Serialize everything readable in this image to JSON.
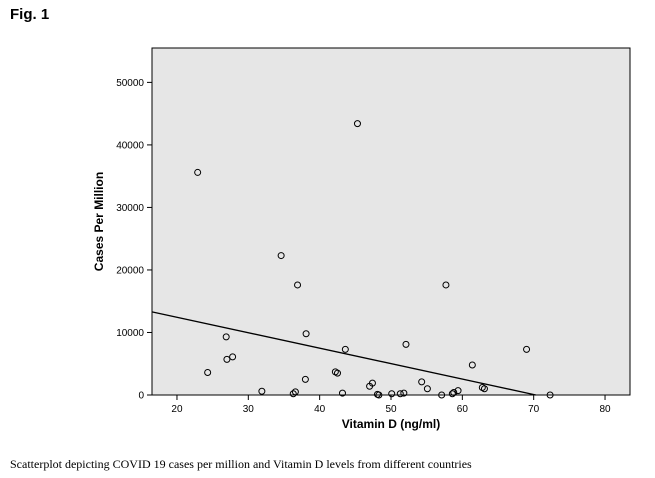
{
  "figure_label": "Fig. 1",
  "caption": "Scatterplot depicting COVID 19 cases per million and Vitamin D levels from different countries",
  "chart_data": {
    "type": "scatter",
    "xlabel": "Vitamin D (ng/ml)",
    "ylabel": "Cases Per Million",
    "xlim": [
      16.5,
      83.5
    ],
    "ylim": [
      0,
      55500
    ],
    "xticks": [
      20,
      30,
      40,
      50,
      60,
      70,
      80
    ],
    "yticks": [
      0,
      10000,
      20000,
      30000,
      40000,
      50000
    ],
    "grid": false,
    "background": "#e6e6e6",
    "points": [
      {
        "x": 22.9,
        "y": 35600
      },
      {
        "x": 24.3,
        "y": 3600
      },
      {
        "x": 26.9,
        "y": 9300
      },
      {
        "x": 27.0,
        "y": 5700
      },
      {
        "x": 27.8,
        "y": 6100
      },
      {
        "x": 31.9,
        "y": 600
      },
      {
        "x": 34.6,
        "y": 22300
      },
      {
        "x": 36.3,
        "y": 200
      },
      {
        "x": 36.6,
        "y": 500
      },
      {
        "x": 36.9,
        "y": 17600
      },
      {
        "x": 38.0,
        "y": 2500
      },
      {
        "x": 38.1,
        "y": 9800
      },
      {
        "x": 42.2,
        "y": 3700
      },
      {
        "x": 42.5,
        "y": 3500
      },
      {
        "x": 43.2,
        "y": 300
      },
      {
        "x": 43.6,
        "y": 7300
      },
      {
        "x": 45.3,
        "y": 43400
      },
      {
        "x": 47.0,
        "y": 1400
      },
      {
        "x": 47.4,
        "y": 1900
      },
      {
        "x": 48.1,
        "y": 100
      },
      {
        "x": 48.3,
        "y": 0
      },
      {
        "x": 50.1,
        "y": 200
      },
      {
        "x": 51.3,
        "y": 200
      },
      {
        "x": 51.8,
        "y": 300
      },
      {
        "x": 52.1,
        "y": 8100
      },
      {
        "x": 54.3,
        "y": 2100
      },
      {
        "x": 55.1,
        "y": 1000
      },
      {
        "x": 57.1,
        "y": 0
      },
      {
        "x": 57.7,
        "y": 17600
      },
      {
        "x": 58.6,
        "y": 200
      },
      {
        "x": 58.8,
        "y": 400
      },
      {
        "x": 59.4,
        "y": 700
      },
      {
        "x": 61.4,
        "y": 4800
      },
      {
        "x": 62.8,
        "y": 1200
      },
      {
        "x": 63.1,
        "y": 1000
      },
      {
        "x": 69.0,
        "y": 7300
      },
      {
        "x": 72.3,
        "y": 0
      }
    ],
    "fit_line": {
      "x": [
        16.5,
        70.3
      ],
      "y": [
        13300,
        0
      ]
    }
  }
}
